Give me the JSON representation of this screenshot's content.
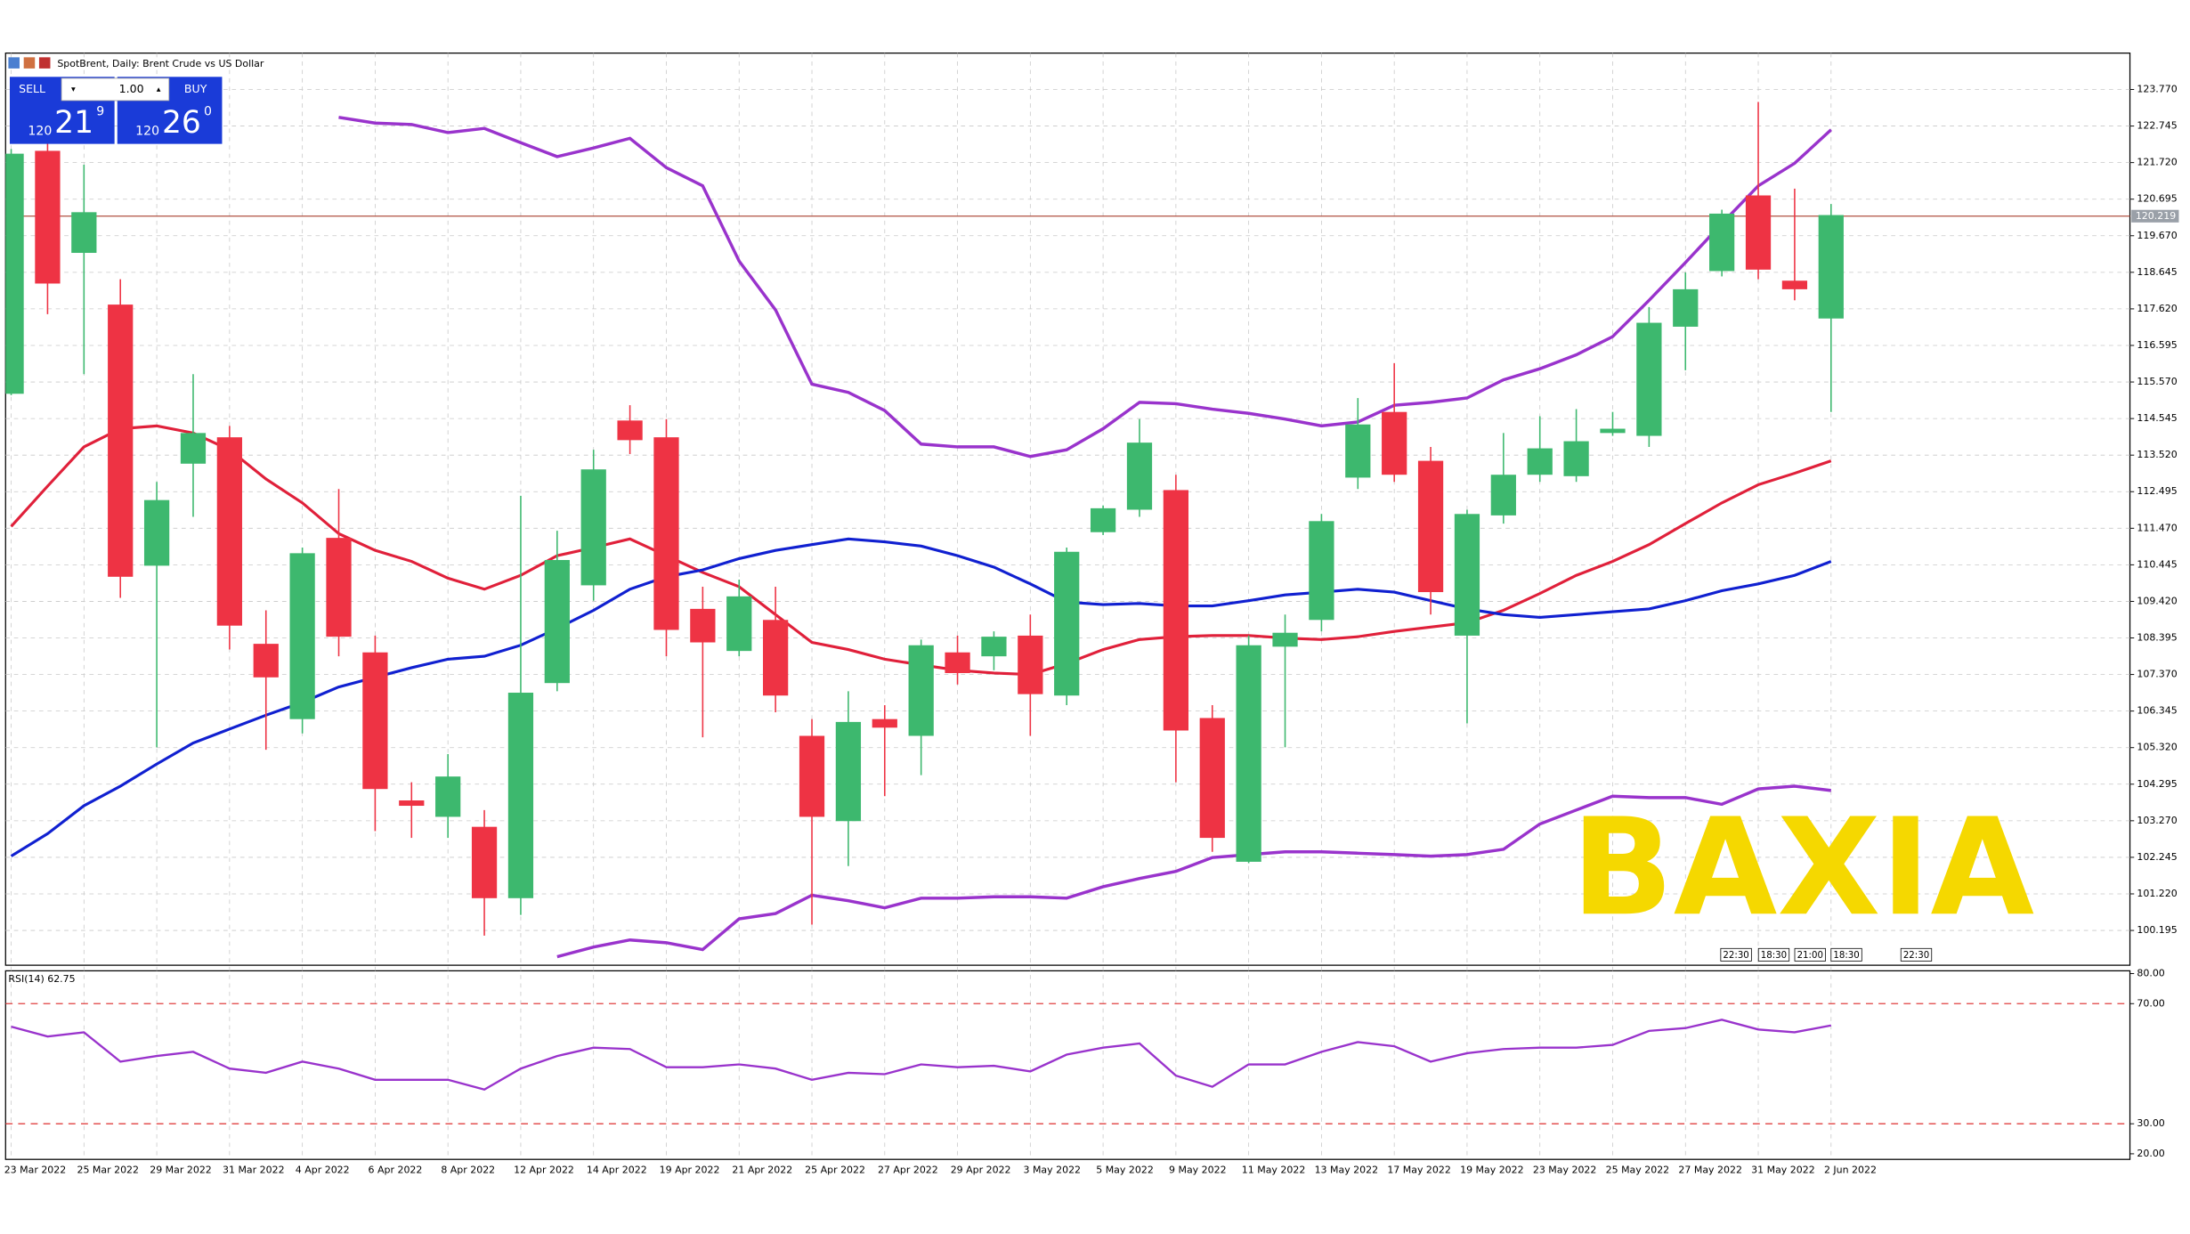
{
  "header": {
    "symbol_title": "SpotBrent, Daily:  Brent Crude vs US Dollar",
    "sell_label": "SELL",
    "buy_label": "BUY",
    "lot": "1.00",
    "sell_price": {
      "prefix": "120",
      "big": "21",
      "sup": "9"
    },
    "buy_price": {
      "prefix": "120",
      "big": "26",
      "sup": "0"
    }
  },
  "watermark": "BAXIA",
  "chart_data": [
    {
      "type": "candlestick",
      "categories": [
        "23 Mar 2022",
        null,
        "25 Mar 2022",
        null,
        "29 Mar 2022",
        null,
        "31 Mar 2022",
        null,
        "4 Apr 2022",
        null,
        "6 Apr 2022",
        null,
        "8 Apr 2022",
        null,
        "12 Apr 2022",
        null,
        "14 Apr 2022",
        null,
        "19 Apr 2022",
        null,
        "21 Apr 2022",
        null,
        "25 Apr 2022",
        null,
        "27 Apr 2022",
        null,
        "29 Apr 2022",
        null,
        "3 May 2022",
        null,
        "5 May 2022",
        null,
        "9 May 2022",
        null,
        "11 May 2022",
        null,
        "13 May 2022",
        null,
        "17 May 2022",
        null,
        "19 May 2022",
        null,
        "23 May 2022",
        null,
        "25 May 2022",
        null,
        "27 May 2022",
        null,
        "31 May 2022",
        null,
        "2 Jun 2022"
      ],
      "open": [
        115.24,
        122.05,
        119.19,
        117.74,
        110.42,
        113.28,
        114.02,
        108.23,
        106.12,
        111.2,
        107.99,
        103.84,
        103.38,
        103.1,
        101.1,
        107.13,
        109.87,
        114.49,
        114.02,
        109.21,
        108.03,
        108.9,
        105.65,
        103.26,
        106.12,
        105.65,
        107.99,
        107.88,
        108.46,
        106.78,
        111.36,
        111.99,
        112.54,
        106.15,
        102.12,
        108.15,
        108.9,
        112.89,
        114.73,
        113.36,
        108.46,
        111.83,
        112.97,
        112.93,
        114.14,
        114.06,
        117.12,
        118.68,
        120.8,
        118.41,
        117.35
      ],
      "high": [
        122.1,
        122.36,
        121.66,
        118.45,
        112.77,
        115.79,
        114.34,
        109.17,
        110.93,
        112.57,
        108.46,
        104.35,
        105.14,
        103.57,
        112.38,
        111.4,
        113.67,
        114.92,
        114.53,
        109.83,
        110.03,
        109.83,
        106.12,
        106.9,
        106.51,
        108.35,
        108.46,
        108.58,
        109.05,
        110.93,
        112.11,
        114.53,
        112.97,
        106.51,
        108.46,
        109.05,
        111.87,
        115.12,
        116.1,
        113.75,
        111.99,
        114.14,
        114.61,
        114.81,
        114.73,
        117.67,
        118.64,
        120.4,
        123.42,
        120.99,
        120.56
      ],
      "low": [
        115.2,
        117.47,
        115.79,
        109.52,
        105.33,
        111.79,
        108.07,
        105.26,
        105.72,
        107.88,
        102.98,
        102.79,
        102.79,
        100.05,
        100.63,
        106.9,
        109.44,
        113.55,
        107.88,
        105.61,
        107.88,
        106.31,
        100.36,
        102.0,
        103.96,
        104.55,
        107.09,
        107.49,
        105.65,
        106.51,
        111.28,
        111.79,
        104.35,
        102.4,
        102.08,
        105.33,
        108.58,
        112.57,
        112.77,
        109.05,
        106.0,
        111.6,
        112.77,
        112.77,
        114.06,
        113.75,
        115.9,
        118.53,
        118.45,
        117.86,
        114.73
      ],
      "close": [
        121.97,
        118.33,
        120.33,
        110.11,
        112.26,
        114.14,
        108.74,
        107.29,
        110.77,
        108.43,
        104.16,
        103.69,
        104.51,
        101.1,
        106.86,
        110.58,
        113.12,
        113.94,
        108.62,
        108.27,
        109.56,
        106.78,
        103.38,
        106.04,
        105.88,
        108.19,
        107.41,
        108.43,
        106.82,
        110.81,
        112.03,
        113.87,
        105.8,
        102.79,
        108.19,
        108.54,
        111.67,
        114.38,
        112.97,
        109.68,
        111.87,
        112.97,
        113.71,
        113.91,
        114.26,
        117.23,
        118.17,
        120.29,
        118.72,
        118.17,
        120.25
      ],
      "up_color": "#3db86e",
      "down_color": "#ee3344",
      "ylim": [
        99.22,
        124.79
      ],
      "yticks": [
        {
          "value": 123.77,
          "label": "123.770"
        },
        {
          "value": 122.745,
          "label": "122.745"
        },
        {
          "value": 121.72,
          "label": "121.720"
        },
        {
          "value": 120.695,
          "label": "120.695"
        },
        {
          "value": 119.67,
          "label": "119.670"
        },
        {
          "value": 118.645,
          "label": "118.645"
        },
        {
          "value": 117.62,
          "label": "117.620"
        },
        {
          "value": 116.595,
          "label": "116.595"
        },
        {
          "value": 115.57,
          "label": "115.570"
        },
        {
          "value": 114.545,
          "label": "114.545"
        },
        {
          "value": 113.52,
          "label": "113.520"
        },
        {
          "value": 112.495,
          "label": "112.495"
        },
        {
          "value": 111.47,
          "label": "111.470"
        },
        {
          "value": 110.445,
          "label": "110.445"
        },
        {
          "value": 109.42,
          "label": "109.420"
        },
        {
          "value": 108.395,
          "label": "108.395"
        },
        {
          "value": 107.37,
          "label": "107.370"
        },
        {
          "value": 106.345,
          "label": "106.345"
        },
        {
          "value": 105.32,
          "label": "105.320"
        },
        {
          "value": 104.295,
          "label": "104.295"
        },
        {
          "value": 103.27,
          "label": "103.270"
        },
        {
          "value": 102.245,
          "label": "102.245"
        },
        {
          "value": 101.22,
          "label": "101.220"
        },
        {
          "value": 100.195,
          "label": "100.195"
        }
      ],
      "grid": true,
      "current_price": 120.219,
      "series": [
        {
          "color": "#e0203a",
          "width": 2,
          "values": [
            111.52,
            112.65,
            113.75,
            114.26,
            114.34,
            114.14,
            113.67,
            112.85,
            112.18,
            111.32,
            110.85,
            110.54,
            110.07,
            109.76,
            110.15,
            110.7,
            110.93,
            111.17,
            110.7,
            110.23,
            109.83,
            109.05,
            108.27,
            108.07,
            107.8,
            107.64,
            107.49,
            107.41,
            107.37,
            107.68,
            108.07,
            108.35,
            108.43,
            108.46,
            108.46,
            108.39,
            108.35,
            108.43,
            108.58,
            108.7,
            108.82,
            109.17,
            109.64,
            110.15,
            110.54,
            111.01,
            111.6,
            112.18,
            112.69,
            113.01,
            113.36
          ]
        },
        {
          "color": "#1020d0",
          "width": 2,
          "values": [
            102.28,
            102.91,
            103.69,
            104.24,
            104.86,
            105.45,
            105.84,
            106.23,
            106.59,
            107.02,
            107.29,
            107.56,
            107.8,
            107.88,
            108.19,
            108.66,
            109.17,
            109.76,
            110.11,
            110.3,
            110.62,
            110.85,
            111.01,
            111.17,
            111.09,
            110.97,
            110.7,
            110.38,
            109.91,
            109.4,
            109.33,
            109.36,
            109.29,
            109.29,
            109.44,
            109.6,
            109.68,
            109.76,
            109.68,
            109.44,
            109.21,
            109.05,
            108.97,
            109.05,
            109.13,
            109.21,
            109.44,
            109.72,
            109.91,
            110.15,
            110.54
          ]
        },
        {
          "color": "#9933cc",
          "width": 2.2,
          "values": [
            null,
            null,
            null,
            null,
            null,
            null,
            null,
            null,
            null,
            122.99,
            122.83,
            122.79,
            122.56,
            122.68,
            122.28,
            121.89,
            122.13,
            122.4,
            121.58,
            121.07,
            118.96,
            117.59,
            115.51,
            115.28,
            114.77,
            113.83,
            113.75,
            113.75,
            113.48,
            113.67,
            114.26,
            115.0,
            114.96,
            114.81,
            114.69,
            114.53,
            114.34,
            114.45,
            114.92,
            115.0,
            115.12,
            115.63,
            115.94,
            116.33,
            116.84,
            117.86,
            118.92,
            120.01,
            121.07,
            121.7,
            122.64
          ]
        },
        {
          "color": "#9933cc",
          "width": 2.2,
          "values": [
            null,
            null,
            null,
            null,
            null,
            null,
            null,
            null,
            null,
            99.73,
            null,
            null,
            null,
            null,
            null,
            99.46,
            99.73,
            99.93,
            99.85,
            99.66,
            100.52,
            100.67,
            101.18,
            101.03,
            100.83,
            101.1,
            101.1,
            101.14,
            101.14,
            101.1,
            101.42,
            101.65,
            101.85,
            102.24,
            102.32,
            102.4,
            102.4,
            102.36,
            102.32,
            102.28,
            102.32,
            102.47,
            103.18,
            103.57,
            103.96,
            103.92,
            103.92,
            103.73,
            104.16,
            104.24,
            104.12
          ]
        }
      ],
      "time_labels": [
        "22:30",
        "18:30",
        "21:00",
        "18:30",
        "22:30"
      ]
    },
    {
      "type": "line",
      "title": "RSI(14) 62.75",
      "ylim": [
        20,
        80
      ],
      "yticks": [
        {
          "value": 80,
          "label": "80.00"
        },
        {
          "value": 70,
          "label": "70.00"
        },
        {
          "value": 30,
          "label": "30.00"
        },
        {
          "value": 20,
          "label": "20.00"
        }
      ],
      "series": [
        {
          "color": "#9933cc",
          "width": 1.5,
          "values": [
            62.33,
            59.07,
            60.47,
            50.7,
            52.56,
            53.95,
            48.37,
            46.98,
            50.7,
            48.37,
            44.65,
            44.65,
            44.65,
            41.4,
            48.37,
            52.56,
            55.35,
            54.88,
            48.84,
            48.84,
            49.77,
            48.37,
            44.65,
            46.98,
            46.51,
            49.77,
            48.84,
            49.3,
            47.44,
            53.02,
            55.35,
            56.74,
            46.05,
            42.33,
            49.77,
            49.77,
            53.95,
            57.21,
            55.81,
            50.7,
            53.49,
            54.88,
            55.35,
            55.35,
            56.28,
            60.93,
            61.86,
            64.65,
            61.4,
            60.47,
            62.75
          ]
        }
      ]
    }
  ]
}
